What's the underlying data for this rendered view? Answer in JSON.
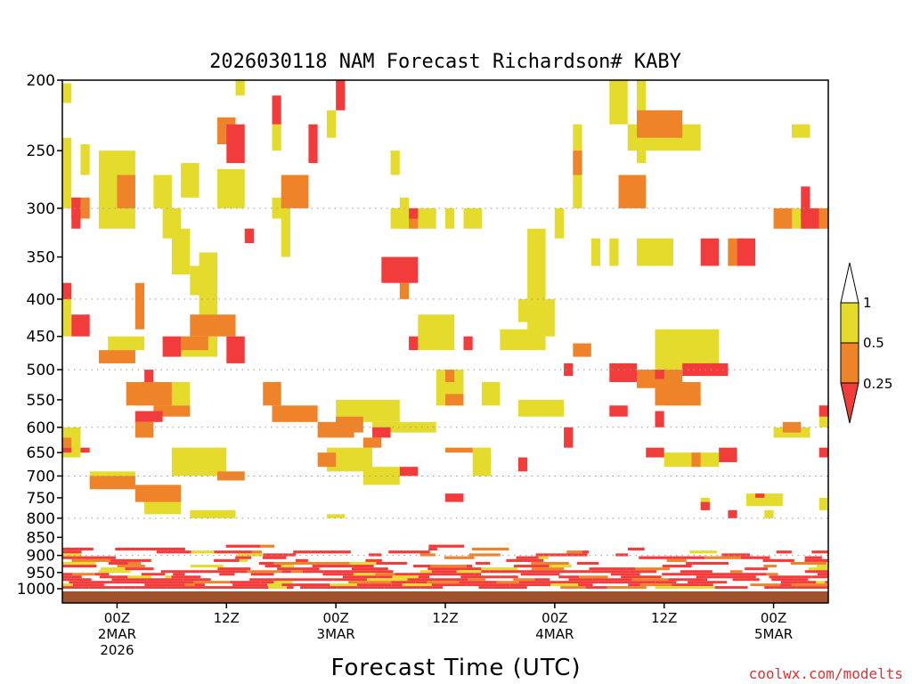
{
  "chart_data": {
    "type": "heatmap",
    "title": "2026030118 NAM Forecast Richardson# KABY",
    "xlabel": "Forecast Time (UTC)",
    "ylabel": "",
    "credit": "coolwx.com/modelts",
    "y_axis": {
      "scale": "log-pressure",
      "range_hPa": [
        1000,
        200
      ],
      "ticks": [
        "200",
        "250",
        "300",
        "350",
        "400",
        "450",
        "500",
        "550",
        "600",
        "650",
        "700",
        "750",
        "800",
        "850",
        "900",
        "950",
        "1000"
      ],
      "dotted_levels": [
        300,
        400,
        500,
        600,
        700,
        800,
        900
      ]
    },
    "x_axis": {
      "range_hours": [
        0,
        84
      ],
      "ticks": [
        {
          "hour": 6,
          "lines": [
            "00Z",
            "2MAR",
            "2026"
          ]
        },
        {
          "hour": 18,
          "lines": [
            "12Z"
          ]
        },
        {
          "hour": 30,
          "lines": [
            "00Z",
            "3MAR"
          ]
        },
        {
          "hour": 42,
          "lines": [
            "12Z"
          ]
        },
        {
          "hour": 54,
          "lines": [
            "00Z",
            "4MAR"
          ]
        },
        {
          "hour": 66,
          "lines": [
            "12Z"
          ]
        },
        {
          "hour": 78,
          "lines": [
            "00Z",
            "5MAR"
          ]
        }
      ]
    },
    "legend": {
      "placement": "right",
      "levels": [
        {
          "label": "1",
          "color": "#ffffff"
        },
        {
          "label": "0.5",
          "color": "#e4db2c"
        },
        {
          "label": "0.25",
          "color": "#ee8329"
        }
      ],
      "lowest_color": "#f23c3c"
    },
    "colors": {
      "low": "#f23c3c",
      "mid": "#ee8329",
      "high": "#e4db2c",
      "ground": "#a0522d"
    },
    "category_codes": {
      "3": "Ri < 0.25",
      "2": "0.25-0.5",
      "1": "0.5-1"
    },
    "series": [
      {
        "name": "Ri 0.5-1",
        "cells": [
          [
            0,
            1,
            202,
            215
          ],
          [
            17,
            20,
            265,
            300
          ],
          [
            0,
            1,
            240,
            300
          ],
          [
            2,
            3,
            245,
            270
          ],
          [
            4,
            8,
            250,
            320
          ],
          [
            10,
            12,
            270,
            300
          ],
          [
            13,
            15,
            260,
            290
          ],
          [
            11,
            13,
            300,
            330
          ],
          [
            12,
            14,
            320,
            370
          ],
          [
            14,
            16,
            360,
            395
          ],
          [
            15,
            17,
            345,
            430
          ],
          [
            16,
            17,
            390,
            410
          ],
          [
            0,
            1,
            380,
            450
          ],
          [
            5,
            9,
            450,
            470
          ],
          [
            13,
            17,
            450,
            480
          ],
          [
            12,
            14,
            520,
            560
          ],
          [
            8,
            12,
            530,
            560
          ],
          [
            0,
            2,
            600,
            660
          ],
          [
            12,
            18,
            640,
            700
          ],
          [
            3,
            8,
            690,
            720
          ],
          [
            9,
            13,
            720,
            790
          ],
          [
            14,
            19,
            780,
            800
          ],
          [
            29,
            31,
            790,
            800
          ],
          [
            29,
            34,
            640,
            690
          ],
          [
            33,
            37,
            680,
            720
          ],
          [
            30,
            37,
            550,
            590
          ],
          [
            34,
            41,
            590,
            610
          ],
          [
            36,
            38,
            300,
            320
          ],
          [
            39,
            41,
            300,
            320
          ],
          [
            42,
            43,
            300,
            320
          ],
          [
            44,
            46,
            300,
            320
          ],
          [
            39,
            43,
            420,
            470
          ],
          [
            41,
            44,
            500,
            560
          ],
          [
            46,
            48,
            520,
            560
          ],
          [
            45,
            47,
            640,
            700
          ],
          [
            48,
            53,
            440,
            470
          ],
          [
            51,
            54,
            400,
            450
          ],
          [
            50,
            52,
            400,
            430
          ],
          [
            50,
            55,
            550,
            580
          ],
          [
            51,
            53,
            320,
            410
          ],
          [
            54,
            55,
            300,
            330
          ],
          [
            56,
            57,
            230,
            300
          ],
          [
            58,
            59,
            330,
            360
          ],
          [
            60,
            61,
            330,
            360
          ],
          [
            63,
            67,
            330,
            360
          ],
          [
            60,
            62,
            200,
            230
          ],
          [
            62,
            70,
            230,
            250
          ],
          [
            62,
            64,
            280,
            300
          ],
          [
            63,
            64,
            200,
            260
          ],
          [
            65,
            72,
            440,
            500
          ],
          [
            66,
            70,
            540,
            560
          ],
          [
            66,
            72,
            650,
            680
          ],
          [
            70,
            71,
            750,
            780
          ],
          [
            73,
            75,
            330,
            360
          ],
          [
            79,
            83,
            300,
            320
          ],
          [
            75,
            79,
            740,
            770
          ],
          [
            78,
            82,
            600,
            620
          ],
          [
            80,
            82,
            230,
            240
          ],
          [
            83,
            84,
            560,
            600
          ],
          [
            83,
            84,
            750,
            780
          ],
          [
            77,
            78,
            780,
            800
          ],
          [
            23,
            24,
            230,
            250
          ],
          [
            24,
            25,
            310,
            350
          ],
          [
            20,
            21,
            320,
            330
          ],
          [
            19,
            20,
            200,
            210
          ],
          [
            29,
            30,
            220,
            240
          ],
          [
            36,
            37,
            250,
            270
          ],
          [
            37,
            38,
            290,
            320
          ],
          [
            23,
            25,
            290,
            310
          ]
        ]
      },
      {
        "name": "Ri 0.25-0.5",
        "cells": [
          [
            17,
            19,
            225,
            245
          ],
          [
            24,
            27,
            270,
            300
          ],
          [
            6,
            8,
            270,
            300
          ],
          [
            8,
            9,
            380,
            440
          ],
          [
            14,
            19,
            420,
            450
          ],
          [
            13,
            16,
            450,
            470
          ],
          [
            4,
            8,
            470,
            490
          ],
          [
            7,
            12,
            520,
            560
          ],
          [
            10,
            14,
            560,
            580
          ],
          [
            1,
            3,
            290,
            310
          ],
          [
            0,
            1,
            620,
            640
          ],
          [
            3,
            8,
            700,
            730
          ],
          [
            8,
            13,
            720,
            760
          ],
          [
            17,
            20,
            690,
            710
          ],
          [
            23,
            28,
            560,
            590
          ],
          [
            28,
            32,
            590,
            620
          ],
          [
            33,
            35,
            620,
            640
          ],
          [
            38,
            39,
            300,
            320
          ],
          [
            37,
            38,
            380,
            400
          ],
          [
            42,
            43,
            500,
            520
          ],
          [
            42,
            44,
            540,
            560
          ],
          [
            42,
            45,
            640,
            650
          ],
          [
            56,
            57,
            250,
            270
          ],
          [
            61,
            64,
            270,
            300
          ],
          [
            63,
            68,
            220,
            240
          ],
          [
            63,
            68,
            500,
            530
          ],
          [
            65,
            70,
            520,
            560
          ],
          [
            69,
            70,
            650,
            680
          ],
          [
            71,
            72,
            490,
            510
          ],
          [
            73,
            74,
            330,
            360
          ],
          [
            78,
            80,
            300,
            320
          ],
          [
            79,
            81,
            590,
            610
          ],
          [
            83,
            84,
            300,
            320
          ],
          [
            8,
            10,
            590,
            620
          ],
          [
            30,
            33,
            580,
            610
          ],
          [
            56,
            58,
            460,
            480
          ],
          [
            28,
            30,
            650,
            680
          ],
          [
            22,
            24,
            520,
            560
          ]
        ]
      },
      {
        "name": "Ri < 0.25",
        "cells": [
          [
            1,
            2,
            290,
            320
          ],
          [
            0,
            1,
            380,
            400
          ],
          [
            1,
            3,
            420,
            450
          ],
          [
            11,
            13,
            450,
            480
          ],
          [
            18,
            20,
            450,
            490
          ],
          [
            9,
            10,
            500,
            520
          ],
          [
            8,
            11,
            570,
            590
          ],
          [
            34,
            36,
            600,
            620
          ],
          [
            35,
            39,
            350,
            380
          ],
          [
            38,
            39,
            300,
            310
          ],
          [
            38,
            39,
            450,
            470
          ],
          [
            44,
            45,
            450,
            470
          ],
          [
            42,
            44,
            740,
            760
          ],
          [
            37,
            39,
            680,
            700
          ],
          [
            50,
            51,
            660,
            690
          ],
          [
            55,
            56,
            490,
            510
          ],
          [
            60,
            63,
            490,
            520
          ],
          [
            65,
            66,
            500,
            515
          ],
          [
            68,
            73,
            490,
            510
          ],
          [
            70,
            72,
            330,
            360
          ],
          [
            74,
            76,
            330,
            360
          ],
          [
            81,
            83,
            300,
            320
          ],
          [
            83,
            84,
            560,
            580
          ],
          [
            70,
            71,
            760,
            780
          ],
          [
            65,
            66,
            570,
            600
          ],
          [
            64,
            66,
            640,
            660
          ],
          [
            72,
            74,
            640,
            670
          ],
          [
            0,
            1,
            640,
            650
          ],
          [
            2,
            3,
            640,
            650
          ],
          [
            76,
            77,
            740,
            750
          ],
          [
            73,
            74,
            780,
            800
          ],
          [
            81,
            82,
            280,
            310
          ],
          [
            83,
            84,
            640,
            660
          ],
          [
            20,
            21,
            320,
            335
          ],
          [
            18,
            20,
            230,
            260
          ],
          [
            27,
            28,
            230,
            260
          ],
          [
            30,
            31,
            200,
            220
          ],
          [
            23,
            24,
            210,
            230
          ],
          [
            60,
            62,
            560,
            580
          ],
          [
            55,
            56,
            600,
            640
          ]
        ]
      }
    ],
    "boundary_layer": {
      "pressure_top_hPa": 950,
      "pressure_bottom_hPa": 1000,
      "description": "dense mixed Ri<0.25 / 0.25-0.5 / 0.5-1 bands in the lowest layers at all forecast hours"
    }
  }
}
